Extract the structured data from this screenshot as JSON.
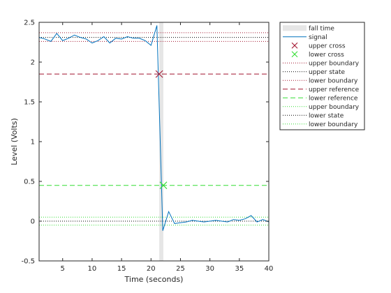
{
  "chart_data": {
    "type": "line",
    "title": "",
    "xlabel": "Time (seconds)",
    "ylabel": "Level (Volts)",
    "xlim": [
      1,
      40
    ],
    "ylim": [
      -0.5,
      2.5
    ],
    "xticks": [
      5,
      10,
      15,
      20,
      25,
      30,
      35,
      40
    ],
    "yticks": [
      -0.5,
      0,
      0.5,
      1,
      1.5,
      2,
      2.5
    ],
    "grid": false,
    "legend_position": "outside-top-right",
    "fall_time_interval": {
      "name": "fall time",
      "x": [
        21.4,
        22.1
      ],
      "color": "#e6e6e6"
    },
    "signal": {
      "name": "signal",
      "color": "#0072bd",
      "x": [
        1,
        2,
        3,
        4,
        5,
        6,
        7,
        8,
        9,
        10,
        11,
        12,
        13,
        14,
        15,
        16,
        17,
        18,
        19,
        20,
        21,
        22,
        23,
        24,
        25,
        26,
        27,
        28,
        29,
        30,
        31,
        32,
        33,
        34,
        35,
        36,
        37,
        38,
        39,
        40
      ],
      "y": [
        2.31,
        2.29,
        2.26,
        2.36,
        2.27,
        2.3,
        2.34,
        2.31,
        2.29,
        2.24,
        2.27,
        2.32,
        2.24,
        2.3,
        2.29,
        2.32,
        2.3,
        2.3,
        2.27,
        2.21,
        2.46,
        -0.12,
        0.12,
        -0.03,
        -0.02,
        -0.01,
        0.01,
        0.0,
        -0.01,
        0.0,
        0.01,
        0.0,
        -0.01,
        0.02,
        0.01,
        0.03,
        0.07,
        -0.01,
        0.02,
        -0.01
      ]
    },
    "crossings": [
      {
        "name": "upper cross",
        "x": 21.4,
        "y": 1.85,
        "color": "#a2142f",
        "marker": "x"
      },
      {
        "name": "lower cross",
        "x": 22.1,
        "y": 0.45,
        "color": "#33dd33",
        "marker": "x"
      }
    ],
    "reference_lines": [
      {
        "name": "upper boundary",
        "y": 2.37,
        "color": "#a2142f",
        "style": "dotted"
      },
      {
        "name": "upper state",
        "y": 2.31,
        "color": "#000000",
        "style": "dotted"
      },
      {
        "name": "lower boundary",
        "y": 2.26,
        "color": "#a2142f",
        "style": "dotted"
      },
      {
        "name": "upper reference",
        "y": 1.85,
        "color": "#a2142f",
        "style": "dashed"
      },
      {
        "name": "lower reference",
        "y": 0.45,
        "color": "#33dd33",
        "style": "dashed"
      },
      {
        "name": "upper boundary",
        "y": 0.05,
        "color": "#33dd33",
        "style": "dotted"
      },
      {
        "name": "lower state",
        "y": 0.0,
        "color": "#000000",
        "style": "dotted"
      },
      {
        "name": "lower boundary",
        "y": -0.05,
        "color": "#33dd33",
        "style": "dotted"
      }
    ],
    "legend": [
      {
        "label": "fall time",
        "kind": "patch",
        "color": "#e6e6e6"
      },
      {
        "label": "signal",
        "kind": "line",
        "color": "#0072bd",
        "style": "solid"
      },
      {
        "label": "upper cross",
        "kind": "marker",
        "color": "#a2142f"
      },
      {
        "label": "lower cross",
        "kind": "marker",
        "color": "#33dd33"
      },
      {
        "label": "upper boundary",
        "kind": "line",
        "color": "#a2142f",
        "style": "dotted"
      },
      {
        "label": "upper state",
        "kind": "line",
        "color": "#000000",
        "style": "dotted"
      },
      {
        "label": "lower boundary",
        "kind": "line",
        "color": "#a2142f",
        "style": "dotted"
      },
      {
        "label": "upper reference",
        "kind": "line",
        "color": "#a2142f",
        "style": "dashed"
      },
      {
        "label": "lower reference",
        "kind": "line",
        "color": "#33dd33",
        "style": "dashed"
      },
      {
        "label": "upper boundary",
        "kind": "line",
        "color": "#33dd33",
        "style": "dotted"
      },
      {
        "label": "lower state",
        "kind": "line",
        "color": "#000000",
        "style": "dotted"
      },
      {
        "label": "lower boundary",
        "kind": "line",
        "color": "#33dd33",
        "style": "dotted"
      }
    ]
  }
}
